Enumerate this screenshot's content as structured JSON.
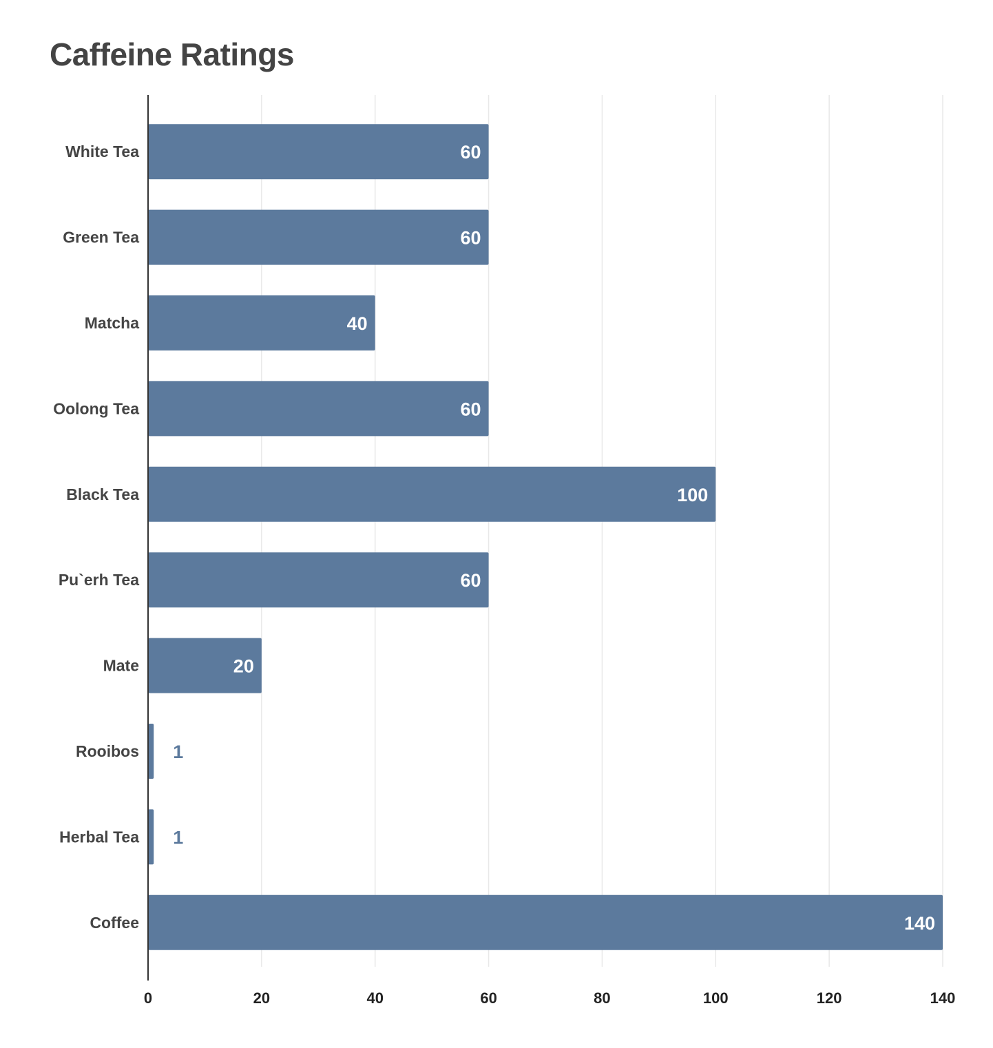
{
  "chart_data": {
    "type": "bar",
    "orientation": "horizontal",
    "title": "Caffeine Ratings",
    "xlabel": "",
    "ylabel": "",
    "categories": [
      "White Tea",
      "Green Tea",
      "Matcha",
      "Oolong Tea",
      "Black Tea",
      "Pu`erh Tea",
      "Mate",
      "Rooibos",
      "Herbal Tea",
      "Coffee"
    ],
    "values": [
      60,
      60,
      40,
      60,
      100,
      60,
      20,
      1,
      1,
      140
    ],
    "xlim": [
      0,
      140
    ],
    "xticks": [
      0,
      20,
      40,
      60,
      80,
      100,
      120,
      140
    ],
    "grid": "vertical",
    "legend": "none",
    "colors": {
      "bar": "#5c7a9d",
      "label_inside": "#ffffff",
      "label_outside": "#5c7a9d",
      "grid": "#e8e8e8",
      "axis": "#333333"
    }
  }
}
